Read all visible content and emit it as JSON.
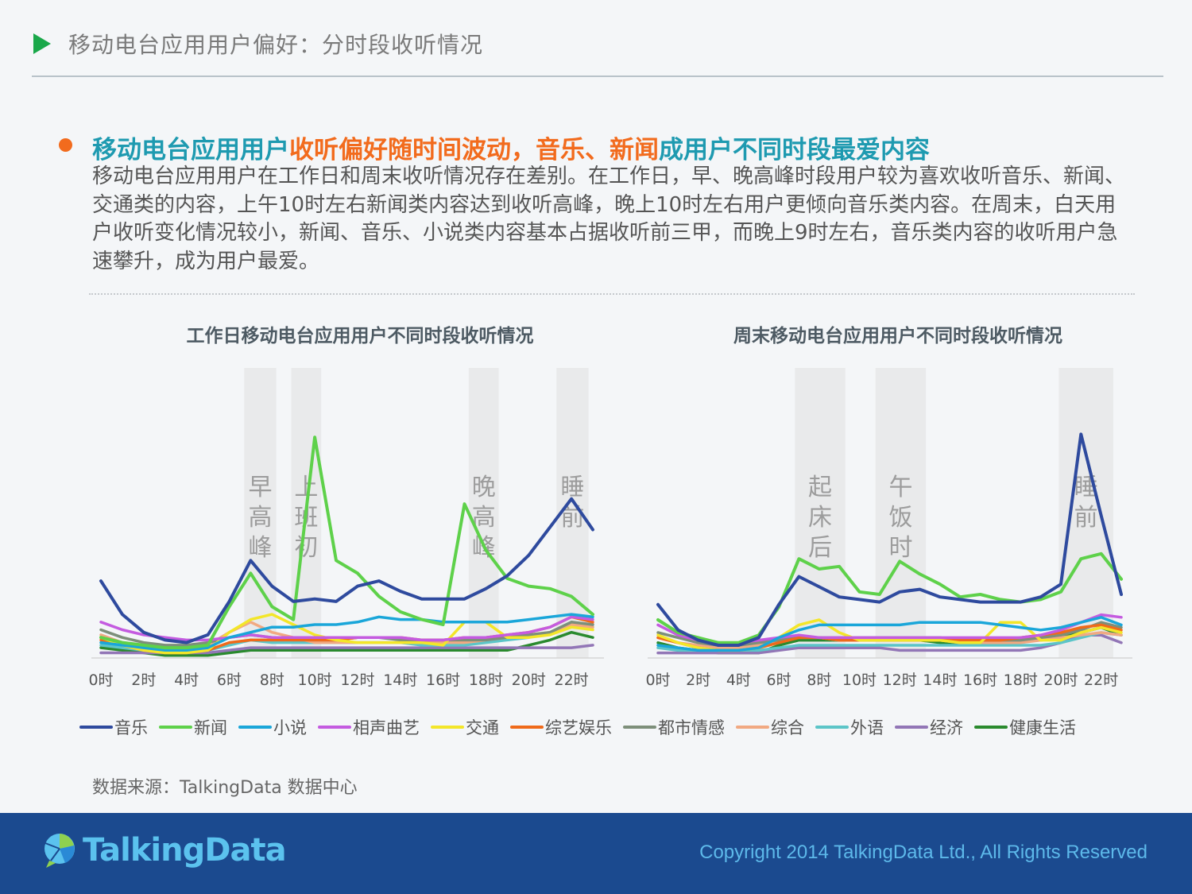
{
  "slide": {
    "title": "移动电台应用用户偏好：分时段收听情况",
    "headline": {
      "part1": "移动电台应用用户",
      "part2": "收听偏好随时间波动，音乐、新闻",
      "part3": "成用户不同时段最爱内容"
    },
    "summary": "移动电台应用用户在工作日和周末收听情况存在差别。在工作日，早、晚高峰时段用户较为喜欢收听音乐、新闻、交通类的内容，上午10时左右新闻类内容达到收听高峰，晚上10时左右用户更倾向音乐类内容。在周末，白天用户收听变化情况较小，新闻、音乐、小说类内容基本占据收听前三甲，而晚上9时左右，音乐类内容的收听用户急速攀升，成为用户最爱。",
    "source": "数据来源：TalkingData 数据中心"
  },
  "footer": {
    "logo_text": "TalkingData",
    "copyright": "Copyright 2014 TalkingData Ltd., All Rights Reserved"
  },
  "colors": {
    "音乐": "#2e4a9e",
    "新闻": "#5ed14a",
    "小说": "#1aa6d9",
    "相声曲艺": "#c45be0",
    "交通": "#f3e629",
    "综艺娱乐": "#ef6a1a",
    "都市情感": "#7d8f7a",
    "综合": "#f1a982",
    "外语": "#5cc5c8",
    "经济": "#9276b6",
    "健康生活": "#2a8a2e"
  },
  "legend": [
    "音乐",
    "新闻",
    "小说",
    "相声曲艺",
    "交通",
    "综艺娱乐",
    "都市情感",
    "综合",
    "外语",
    "经济",
    "健康生活"
  ],
  "chart_data": [
    {
      "type": "line",
      "title": "工作日移动电台应用用户不同时段收听情况",
      "x": [
        0,
        1,
        2,
        3,
        4,
        5,
        6,
        7,
        8,
        9,
        10,
        11,
        12,
        13,
        14,
        15,
        16,
        17,
        18,
        19,
        20,
        21,
        22,
        23
      ],
      "x_tick_labels": [
        "0时",
        "2时",
        "4时",
        "6时",
        "8时",
        "10时",
        "12时",
        "14时",
        "16时",
        "18时",
        "20时",
        "22时"
      ],
      "ylim": [
        0,
        100
      ],
      "shaded_periods": [
        {
          "from": 6.7,
          "to": 8.2,
          "label": "早高峰"
        },
        {
          "from": 8.9,
          "to": 10.3,
          "label": "上班初"
        },
        {
          "from": 17.2,
          "to": 18.6,
          "label": "晚高峰"
        },
        {
          "from": 21.3,
          "to": 22.8,
          "label": "睡前"
        }
      ],
      "series": [
        {
          "name": "音乐",
          "values": [
            30,
            17,
            10,
            7,
            6,
            9,
            22,
            38,
            28,
            22,
            23,
            22,
            28,
            30,
            26,
            23,
            23,
            23,
            27,
            32,
            40,
            51,
            62,
            50
          ]
        },
        {
          "name": "新闻",
          "values": [
            8,
            6,
            5,
            4,
            4,
            5,
            20,
            33,
            20,
            15,
            86,
            38,
            33,
            24,
            18,
            15,
            13,
            60,
            42,
            31,
            28,
            27,
            24,
            17
          ]
        },
        {
          "name": "小说",
          "values": [
            6,
            5,
            4,
            3,
            3,
            4,
            8,
            10,
            12,
            12,
            13,
            13,
            14,
            16,
            15,
            15,
            14,
            14,
            14,
            14,
            15,
            16,
            17,
            16
          ]
        },
        {
          "name": "相声曲艺",
          "values": [
            14,
            11,
            9,
            8,
            7,
            7,
            8,
            9,
            8,
            8,
            8,
            8,
            8,
            8,
            8,
            7,
            7,
            8,
            8,
            9,
            10,
            12,
            16,
            15
          ]
        },
        {
          "name": "交通",
          "values": [
            8,
            5,
            3,
            2,
            2,
            3,
            10,
            15,
            17,
            13,
            9,
            7,
            6,
            6,
            6,
            6,
            5,
            14,
            14,
            8,
            8,
            9,
            12,
            11
          ]
        },
        {
          "name": "综艺娱乐",
          "values": [
            7,
            5,
            3,
            2,
            2,
            3,
            6,
            7,
            7,
            7,
            7,
            7,
            8,
            8,
            8,
            7,
            7,
            8,
            8,
            9,
            10,
            12,
            16,
            14
          ]
        },
        {
          "name": "都市情感",
          "values": [
            11,
            8,
            6,
            5,
            5,
            6,
            8,
            9,
            8,
            7,
            7,
            7,
            8,
            8,
            7,
            7,
            7,
            7,
            7,
            8,
            9,
            10,
            14,
            13
          ]
        },
        {
          "name": "综合",
          "values": [
            9,
            6,
            5,
            4,
            4,
            5,
            10,
            14,
            10,
            8,
            6,
            6,
            6,
            6,
            6,
            6,
            6,
            6,
            7,
            8,
            9,
            10,
            13,
            12
          ]
        },
        {
          "name": "外语",
          "values": [
            5,
            4,
            3,
            3,
            3,
            3,
            5,
            7,
            6,
            6,
            6,
            6,
            6,
            6,
            6,
            5,
            5,
            5,
            6,
            7,
            8,
            10,
            14,
            12
          ]
        },
        {
          "name": "经济",
          "values": [
            2,
            2,
            2,
            2,
            2,
            2,
            3,
            4,
            4,
            4,
            4,
            4,
            4,
            4,
            4,
            4,
            4,
            4,
            4,
            4,
            4,
            4,
            4,
            5
          ]
        },
        {
          "name": "健康生活",
          "values": [
            4,
            3,
            2,
            1,
            1,
            1,
            2,
            3,
            3,
            3,
            3,
            3,
            3,
            3,
            3,
            3,
            3,
            3,
            3,
            3,
            5,
            7,
            10,
            8
          ]
        }
      ]
    },
    {
      "type": "line",
      "title": "周末移动电台应用用户不同时段收听情况",
      "x": [
        0,
        1,
        2,
        3,
        4,
        5,
        6,
        7,
        8,
        9,
        10,
        11,
        12,
        13,
        14,
        15,
        16,
        17,
        18,
        19,
        20,
        21,
        22,
        23
      ],
      "x_tick_labels": [
        "0时",
        "2时",
        "4时",
        "6时",
        "8时",
        "10时",
        "12时",
        "14时",
        "16时",
        "18时",
        "20时",
        "22时"
      ],
      "ylim": [
        0,
        100
      ],
      "shaded_periods": [
        {
          "from": 6.8,
          "to": 9.3,
          "label": "起床后"
        },
        {
          "from": 10.8,
          "to": 13.3,
          "label": "午饭时"
        },
        {
          "from": 19.9,
          "to": 22.6,
          "label": "睡前"
        }
      ],
      "series": [
        {
          "name": "音乐",
          "values": [
            21,
            11,
            7,
            5,
            5,
            8,
            21,
            32,
            28,
            24,
            23,
            22,
            26,
            27,
            24,
            23,
            22,
            22,
            22,
            24,
            29,
            88,
            56,
            25
          ]
        },
        {
          "name": "新闻",
          "values": [
            15,
            10,
            8,
            6,
            6,
            9,
            20,
            39,
            35,
            36,
            26,
            25,
            38,
            33,
            29,
            24,
            25,
            23,
            22,
            23,
            26,
            39,
            41,
            31
          ]
        },
        {
          "name": "小说",
          "values": [
            5,
            4,
            3,
            3,
            3,
            4,
            8,
            11,
            13,
            13,
            13,
            13,
            13,
            14,
            14,
            14,
            14,
            13,
            12,
            11,
            12,
            14,
            16,
            13
          ]
        },
        {
          "name": "相声曲艺",
          "values": [
            13,
            9,
            7,
            6,
            6,
            7,
            8,
            9,
            8,
            8,
            8,
            8,
            8,
            8,
            8,
            8,
            8,
            8,
            8,
            9,
            11,
            14,
            17,
            16
          ]
        },
        {
          "name": "交通",
          "values": [
            9,
            6,
            4,
            3,
            3,
            4,
            8,
            13,
            15,
            10,
            7,
            7,
            7,
            7,
            7,
            6,
            6,
            14,
            14,
            7,
            7,
            10,
            12,
            10
          ]
        },
        {
          "name": "综艺娱乐",
          "values": [
            8,
            6,
            4,
            3,
            3,
            4,
            6,
            8,
            8,
            7,
            7,
            7,
            7,
            7,
            7,
            7,
            7,
            7,
            8,
            9,
            10,
            12,
            13,
            11
          ]
        },
        {
          "name": "都市情感",
          "values": [
            10,
            8,
            6,
            5,
            5,
            6,
            7,
            8,
            8,
            8,
            8,
            8,
            8,
            8,
            8,
            7,
            7,
            7,
            7,
            8,
            9,
            11,
            14,
            12
          ]
        },
        {
          "name": "综合",
          "values": [
            8,
            6,
            5,
            4,
            4,
            5,
            7,
            8,
            8,
            7,
            7,
            7,
            7,
            7,
            7,
            6,
            6,
            6,
            6,
            7,
            8,
            9,
            10,
            9
          ]
        },
        {
          "name": "外语",
          "values": [
            4,
            3,
            3,
            3,
            3,
            3,
            4,
            5,
            5,
            5,
            5,
            5,
            5,
            5,
            5,
            5,
            5,
            5,
            5,
            5,
            6,
            8,
            10,
            9
          ]
        },
        {
          "name": "经济",
          "values": [
            2,
            2,
            2,
            2,
            2,
            2,
            3,
            4,
            4,
            4,
            4,
            4,
            3,
            3,
            3,
            3,
            3,
            3,
            3,
            4,
            6,
            9,
            9,
            6
          ]
        },
        {
          "name": "健康生活",
          "values": [
            6,
            4,
            3,
            2,
            2,
            2,
            5,
            7,
            7,
            7,
            7,
            7,
            7,
            7,
            6,
            6,
            6,
            6,
            7,
            7,
            8,
            10,
            12,
            9
          ]
        }
      ]
    }
  ]
}
